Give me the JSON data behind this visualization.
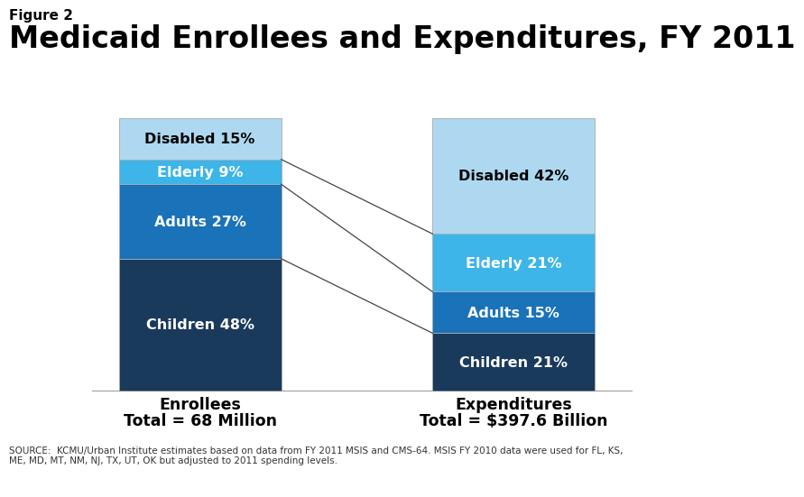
{
  "figure_label": "Figure 2",
  "title": "Medicaid Enrollees and Expenditures, FY 2011",
  "title_fontsize": 24,
  "figure_label_fontsize": 11,
  "enrollees": {
    "label": "Enrollees",
    "sublabel": "Total = 68 Million",
    "categories": [
      "Children",
      "Adults",
      "Elderly",
      "Disabled"
    ],
    "values": [
      48,
      27,
      9,
      15
    ],
    "colors": [
      "#1a3a5c",
      "#1a72b8",
      "#3db5e8",
      "#add8f0"
    ],
    "text_colors": [
      "white",
      "white",
      "white",
      "black"
    ]
  },
  "expenditures": {
    "label": "Expenditures",
    "sublabel": "Total = $397.6 Billion",
    "categories": [
      "Children",
      "Adults",
      "Elderly",
      "Disabled"
    ],
    "values": [
      21,
      15,
      21,
      42
    ],
    "colors": [
      "#1a3a5c",
      "#1a72b8",
      "#3db5e8",
      "#add8f0"
    ],
    "text_colors": [
      "white",
      "white",
      "white",
      "black"
    ]
  },
  "source_text": "SOURCE:  KCMU/Urban Institute estimates based on data from FY 2011 MSIS and CMS-64. MSIS FY 2010 data were used for FL, KS,\nME, MD, MT, NM, NJ, TX, UT, OK but adjusted to 2011 spending levels.",
  "connector_color": "#444444",
  "background_color": "#ffffff",
  "bar_edge_color": "#aaaaaa",
  "axis_line_color": "#888888"
}
